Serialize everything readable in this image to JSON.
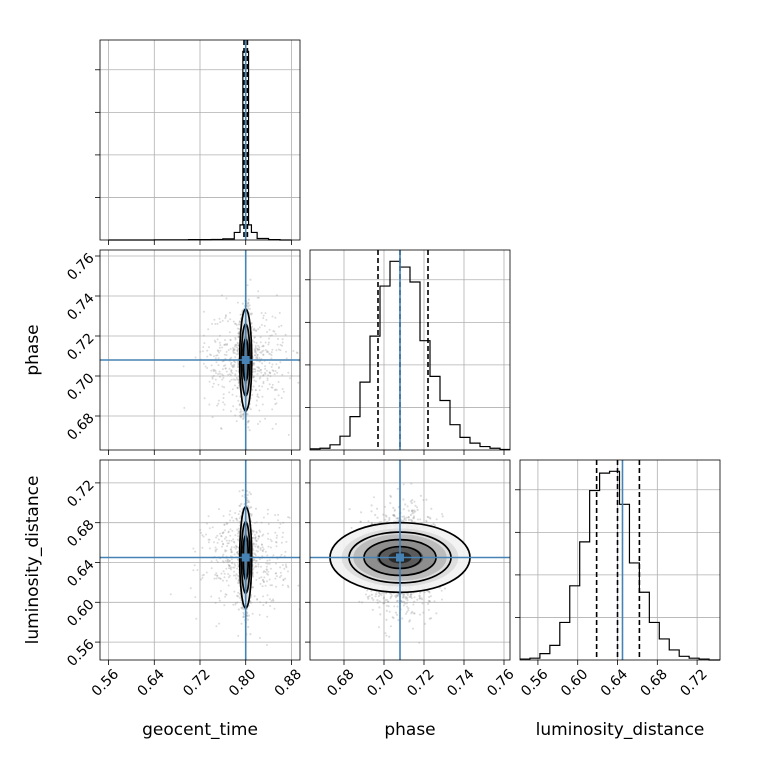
{
  "chart_data": {
    "type": "corner",
    "parameters": [
      "geocent_time",
      "phase",
      "luminosity_distance"
    ],
    "truths": {
      "geocent_time": 0.8,
      "phase": 0.708,
      "luminosity_distance": 0.645
    },
    "ranges": {
      "geocent_time": [
        0.545,
        0.895
      ],
      "phase": [
        0.663,
        0.763
      ],
      "luminosity_distance": [
        0.542,
        0.743
      ]
    },
    "ticks": {
      "geocent_time": [
        0.56,
        0.64,
        0.72,
        0.8,
        0.88
      ],
      "phase": [
        0.68,
        0.7,
        0.72,
        0.74,
        0.76
      ],
      "luminosity_distance": [
        0.56,
        0.6,
        0.64,
        0.68,
        0.72
      ]
    },
    "tick_labels": {
      "geocent_time": [
        "0.56",
        "0.64",
        "0.72",
        "0.80",
        "0.88"
      ],
      "phase": [
        "0.68",
        "0.70",
        "0.72",
        "0.74",
        "0.76"
      ],
      "luminosity_distance": [
        "0.56",
        "0.60",
        "0.64",
        "0.68",
        "0.72"
      ]
    },
    "quantiles": {
      "geocent_time": [
        0.797,
        0.8,
        0.803
      ],
      "phase": [
        0.697,
        0.708,
        0.722
      ],
      "luminosity_distance": [
        0.619,
        0.64,
        0.662
      ]
    },
    "histograms": {
      "geocent_time": {
        "edges": [
          0.56,
          0.58,
          0.6,
          0.62,
          0.64,
          0.66,
          0.68,
          0.7,
          0.72,
          0.74,
          0.76,
          0.78,
          0.79,
          0.795,
          0.805,
          0.81,
          0.82,
          0.84,
          0.86,
          0.88
        ],
        "counts": [
          0,
          0,
          0,
          0,
          1,
          1,
          1,
          2,
          2,
          3,
          6,
          40,
          80,
          1000,
          80,
          40,
          8,
          2,
          0
        ]
      },
      "phase": {
        "edges": [
          0.663,
          0.668,
          0.673,
          0.678,
          0.683,
          0.688,
          0.693,
          0.698,
          0.703,
          0.708,
          0.713,
          0.718,
          0.723,
          0.728,
          0.733,
          0.738,
          0.743,
          0.748,
          0.753,
          0.758,
          0.763
        ],
        "counts": [
          2,
          3,
          9,
          24,
          58,
          118,
          198,
          285,
          328,
          318,
          292,
          190,
          128,
          86,
          44,
          22,
          12,
          6,
          3,
          1
        ]
      },
      "luminosity_distance": {
        "edges": [
          0.542,
          0.552,
          0.562,
          0.572,
          0.582,
          0.592,
          0.602,
          0.612,
          0.622,
          0.632,
          0.642,
          0.652,
          0.662,
          0.672,
          0.682,
          0.692,
          0.702,
          0.712,
          0.722,
          0.732,
          0.743
        ],
        "counts": [
          2,
          4,
          14,
          32,
          82,
          162,
          258,
          370,
          408,
          412,
          340,
          212,
          148,
          82,
          46,
          22,
          8,
          4,
          2,
          0
        ]
      }
    },
    "scatter_spread": {
      "geocent_time": 0.033,
      "phase": 0.013,
      "luminosity_distance": 0.025
    },
    "contour_levels": [
      {
        "geocent_time": [
          0.0045,
          0.0075,
          0.0105
        ],
        "phase": [
          0.0105,
          0.018,
          0.0255
        ],
        "luminosity_distance": [
          0.022,
          0.036,
          0.051
        ]
      },
      {
        "phase": [
          0.0105,
          0.018,
          0.0255,
          0.035
        ],
        "luminosity_distance": [
          0.011,
          0.018,
          0.0255,
          0.035
        ]
      }
    ],
    "grid": true
  }
}
